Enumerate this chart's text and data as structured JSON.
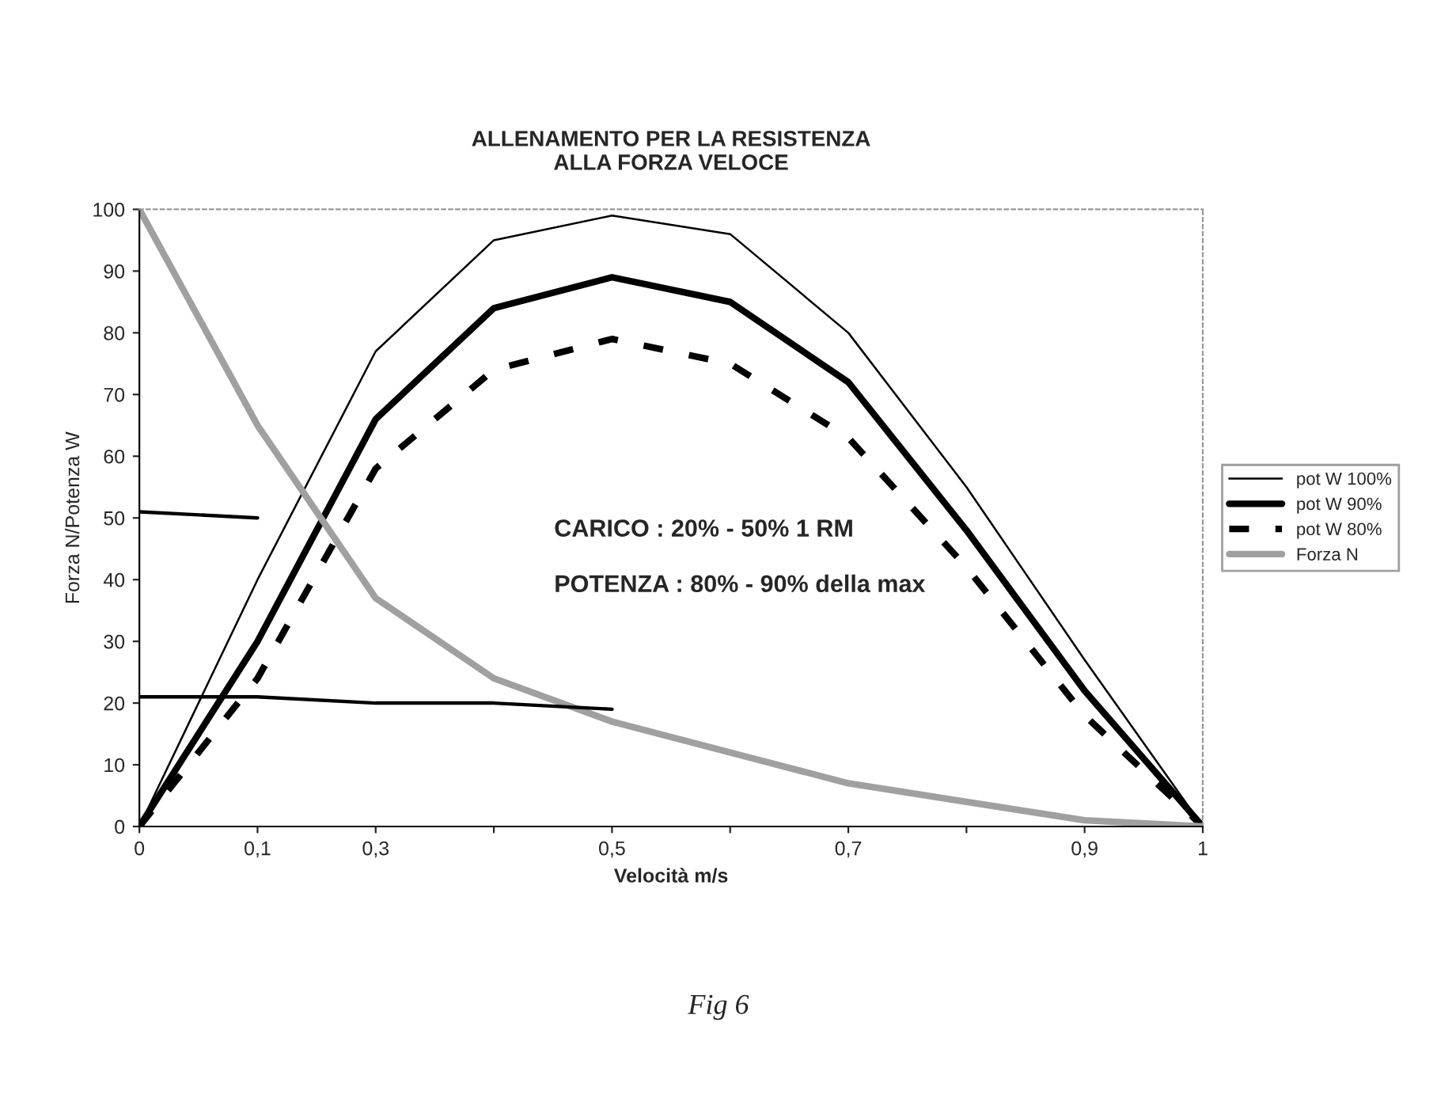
{
  "chart_data": {
    "type": "line",
    "title": "ALLENAMENTO PER LA RESISTENZA\nALLA FORZA VELOCE",
    "xlabel": "Velocità m/s",
    "ylabel": "Forza N/Potenza W",
    "categories": [
      "0",
      "0,1",
      "0,3",
      null,
      "0,5",
      null,
      "0,7",
      null,
      "0,9",
      "1"
    ],
    "series": [
      {
        "name": "pot W 100%",
        "color": "#000000",
        "line_style": "solid",
        "values": [
          0,
          40,
          77,
          95,
          99,
          96,
          80,
          55,
          27,
          0
        ]
      },
      {
        "name": "pot W 90%",
        "color": "#000000",
        "line_style": "solid",
        "values": [
          0,
          30,
          66,
          84,
          89,
          85,
          72,
          48,
          22,
          0
        ]
      },
      {
        "name": "pot W 80%",
        "color": "#000000",
        "line_style": "dashed",
        "values": [
          0,
          24,
          58,
          74,
          79,
          75,
          63,
          42,
          18,
          0
        ]
      },
      {
        "name": "Forza N",
        "color": "#a0a0a0",
        "line_style": "solid",
        "values": [
          100,
          65,
          37,
          24,
          17,
          12,
          7,
          4,
          1,
          0
        ]
      },
      {
        "color": "#000000",
        "line_style": "solid",
        "values": [
          51,
          50,
          null,
          null,
          null,
          null,
          null,
          null,
          null,
          null
        ]
      },
      {
        "color": "#000000",
        "line_style": "solid",
        "values": [
          21,
          21,
          20,
          20,
          19,
          null,
          null,
          null,
          null,
          null
        ]
      }
    ],
    "ylim": [
      0,
      100
    ],
    "yticks": [
      0,
      10,
      20,
      30,
      40,
      50,
      60,
      70,
      80,
      90,
      100
    ],
    "legend": "right",
    "grid": false,
    "marker": "none",
    "annotations": [
      "CARICO : 20% - 50% 1 RM",
      "POTENZA : 80% - 90% della max",
      "Fig 6"
    ]
  }
}
